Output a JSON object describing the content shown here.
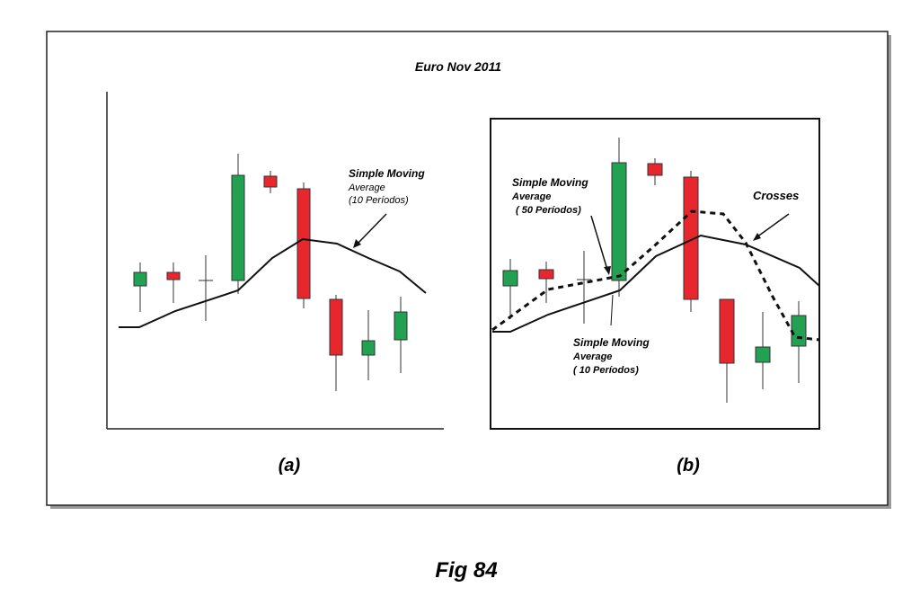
{
  "title": "Euro Nov 2011",
  "panels": [
    {
      "label": "(a)",
      "annotations": [
        {
          "lines": [
            "Simple Moving",
            "Average",
            "(10 Períodos)"
          ]
        }
      ]
    },
    {
      "label": "(b)",
      "annotations": [
        {
          "lines": [
            "Simple Moving",
            "Average",
            "( 50 Períodos)"
          ]
        },
        {
          "lines": [
            "Crosses"
          ]
        },
        {
          "lines": [
            "Simple Moving",
            "Average",
            "( 10 Períodos)"
          ]
        }
      ]
    }
  ],
  "caption": "Fig 84"
}
